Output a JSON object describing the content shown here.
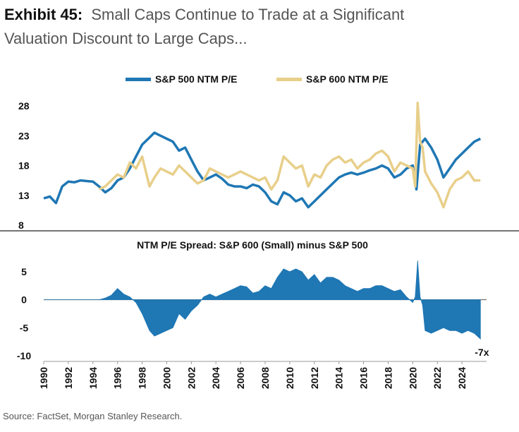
{
  "header": {
    "exhibit": "Exhibit 45:",
    "title_line1": "Small Caps Continue to Trade at a Significant",
    "title_line2": "Valuation Discount to Large Caps..."
  },
  "source": "Source: FactSet, Morgan Stanley Research.",
  "colors": {
    "sp500": "#1f77b4",
    "sp600": "#e8cf8a",
    "spread": "#1f77b4"
  },
  "chart_data": [
    {
      "type": "line",
      "title": "",
      "legend": "top",
      "ylim": [
        8,
        28
      ],
      "yticks": [
        28,
        23,
        18,
        13,
        8
      ],
      "x_range": [
        1990,
        2026
      ],
      "series": [
        {
          "name": "S&P 500 NTM P/E",
          "x": [
            1990.0,
            1990.5,
            1991.0,
            1991.5,
            1992.0,
            1992.5,
            1993.0,
            1993.5,
            1994.0,
            1994.5,
            1995.0,
            1995.5,
            1996.0,
            1996.5,
            1997.0,
            1997.5,
            1998.0,
            1998.5,
            1999.0,
            1999.5,
            2000.0,
            2000.5,
            2001.0,
            2001.5,
            2002.0,
            2002.5,
            2003.0,
            2003.5,
            2004.0,
            2004.5,
            2005.0,
            2005.5,
            2006.0,
            2006.5,
            2007.0,
            2007.5,
            2008.0,
            2008.5,
            2009.0,
            2009.5,
            2010.0,
            2010.5,
            2011.0,
            2011.5,
            2012.0,
            2012.5,
            2013.0,
            2013.5,
            2014.0,
            2014.5,
            2015.0,
            2015.5,
            2016.0,
            2016.5,
            2017.0,
            2017.5,
            2018.0,
            2018.5,
            2019.0,
            2019.5,
            2020.0,
            2020.3,
            2020.6,
            2021.0,
            2021.5,
            2022.0,
            2022.5,
            2023.0,
            2023.5,
            2024.0,
            2024.5,
            2025.0,
            2025.5
          ],
          "values": [
            12.5,
            12.8,
            11.7,
            14.5,
            15.3,
            15.2,
            15.5,
            15.4,
            15.3,
            14.5,
            13.5,
            14.2,
            15.5,
            16.0,
            17.5,
            19.5,
            21.5,
            22.5,
            23.5,
            23.0,
            22.5,
            22.0,
            20.5,
            21.0,
            19.0,
            17.0,
            15.5,
            16.0,
            16.5,
            15.8,
            14.8,
            14.5,
            14.5,
            14.2,
            14.8,
            14.5,
            13.5,
            12.0,
            11.5,
            13.5,
            13.0,
            12.0,
            12.5,
            11.0,
            12.0,
            13.0,
            14.0,
            15.0,
            16.0,
            16.5,
            16.8,
            16.5,
            16.8,
            17.2,
            17.5,
            18.0,
            17.5,
            16.0,
            16.5,
            17.5,
            18.0,
            14.0,
            21.5,
            22.5,
            21.0,
            19.0,
            16.0,
            17.5,
            19.0,
            20.0,
            21.0,
            22.0,
            22.5
          ]
        },
        {
          "name": "S&P 600 NTM P/E",
          "x": [
            1994.5,
            1995.0,
            1995.5,
            1996.0,
            1996.5,
            1997.0,
            1997.5,
            1998.0,
            1998.3,
            1998.6,
            1999.0,
            1999.5,
            2000.0,
            2000.5,
            2001.0,
            2001.5,
            2002.0,
            2002.5,
            2003.0,
            2003.5,
            2004.0,
            2004.5,
            2005.0,
            2005.5,
            2006.0,
            2006.5,
            2007.0,
            2007.5,
            2008.0,
            2008.5,
            2009.0,
            2009.5,
            2010.0,
            2010.5,
            2011.0,
            2011.5,
            2012.0,
            2012.5,
            2013.0,
            2013.5,
            2014.0,
            2014.5,
            2015.0,
            2015.5,
            2016.0,
            2016.5,
            2017.0,
            2017.5,
            2018.0,
            2018.5,
            2019.0,
            2019.5,
            2020.0,
            2020.2,
            2020.4,
            2020.6,
            2020.8,
            2021.0,
            2021.5,
            2022.0,
            2022.5,
            2023.0,
            2023.5,
            2024.0,
            2024.5,
            2025.0,
            2025.5
          ],
          "values": [
            14.0,
            14.5,
            15.5,
            16.5,
            16.0,
            18.5,
            17.5,
            19.5,
            17.0,
            14.5,
            16.0,
            17.5,
            17.0,
            16.5,
            18.0,
            17.0,
            16.0,
            15.0,
            15.5,
            17.5,
            17.0,
            16.5,
            16.0,
            16.5,
            17.0,
            16.5,
            16.0,
            15.5,
            16.0,
            14.0,
            15.5,
            19.5,
            18.5,
            17.5,
            18.0,
            14.5,
            16.5,
            16.0,
            18.0,
            19.0,
            19.5,
            18.5,
            19.0,
            17.5,
            18.5,
            19.0,
            20.0,
            20.5,
            19.5,
            17.0,
            18.5,
            18.0,
            17.5,
            14.5,
            28.5,
            22.0,
            21.0,
            17.0,
            15.0,
            13.5,
            11.0,
            14.0,
            15.5,
            16.0,
            17.0,
            15.5,
            15.5
          ]
        }
      ]
    },
    {
      "type": "area",
      "title": "NTM P/E Spread: S&P 600 (Small) minus S&P 500",
      "ylim": [
        -10,
        7
      ],
      "yticks": [
        5,
        0,
        -5,
        -10
      ],
      "xticks": [
        "1990",
        "1992",
        "1994",
        "1996",
        "1998",
        "2000",
        "2002",
        "2004",
        "2006",
        "2008",
        "2010",
        "2012",
        "2014",
        "2016",
        "2018",
        "2020",
        "2022",
        "2024"
      ],
      "end_label": "-7x",
      "series": [
        {
          "name": "Spread",
          "x": [
            1990.0,
            1991.0,
            1992.0,
            1993.0,
            1994.0,
            1994.5,
            1995.0,
            1995.5,
            1996.0,
            1996.5,
            1997.0,
            1997.5,
            1998.0,
            1998.3,
            1998.6,
            1999.0,
            1999.5,
            2000.0,
            2000.5,
            2001.0,
            2001.5,
            2002.0,
            2002.5,
            2003.0,
            2003.5,
            2004.0,
            2004.5,
            2005.0,
            2005.5,
            2006.0,
            2006.5,
            2007.0,
            2007.5,
            2008.0,
            2008.5,
            2009.0,
            2009.5,
            2010.0,
            2010.5,
            2011.0,
            2011.5,
            2012.0,
            2012.5,
            2013.0,
            2013.5,
            2014.0,
            2014.5,
            2015.0,
            2015.5,
            2016.0,
            2016.5,
            2017.0,
            2017.5,
            2018.0,
            2018.5,
            2019.0,
            2019.5,
            2020.0,
            2020.2,
            2020.4,
            2020.6,
            2020.8,
            2021.0,
            2021.5,
            2022.0,
            2022.5,
            2023.0,
            2023.5,
            2024.0,
            2024.5,
            2025.0,
            2025.5
          ],
          "values": [
            0,
            0,
            0,
            0,
            0,
            0,
            0.3,
            0.8,
            2.0,
            1.0,
            0.5,
            -0.5,
            -2.5,
            -4.0,
            -5.5,
            -6.5,
            -6.0,
            -5.5,
            -5.0,
            -2.5,
            -3.5,
            -2.0,
            -1.0,
            0.5,
            1.0,
            0.5,
            1.0,
            1.5,
            2.0,
            2.5,
            2.3,
            1.2,
            1.5,
            2.5,
            2.0,
            4.0,
            5.5,
            5.0,
            5.5,
            5.0,
            3.5,
            4.5,
            3.0,
            4.0,
            4.0,
            3.5,
            2.5,
            2.0,
            1.5,
            2.0,
            2.0,
            2.5,
            2.5,
            2.0,
            1.5,
            1.8,
            0.5,
            -0.5,
            0.5,
            7.0,
            0.5,
            -1.0,
            -5.5,
            -6.0,
            -5.5,
            -5.0,
            -5.5,
            -5.5,
            -6.0,
            -5.5,
            -6.0,
            -7.0
          ]
        }
      ]
    }
  ]
}
